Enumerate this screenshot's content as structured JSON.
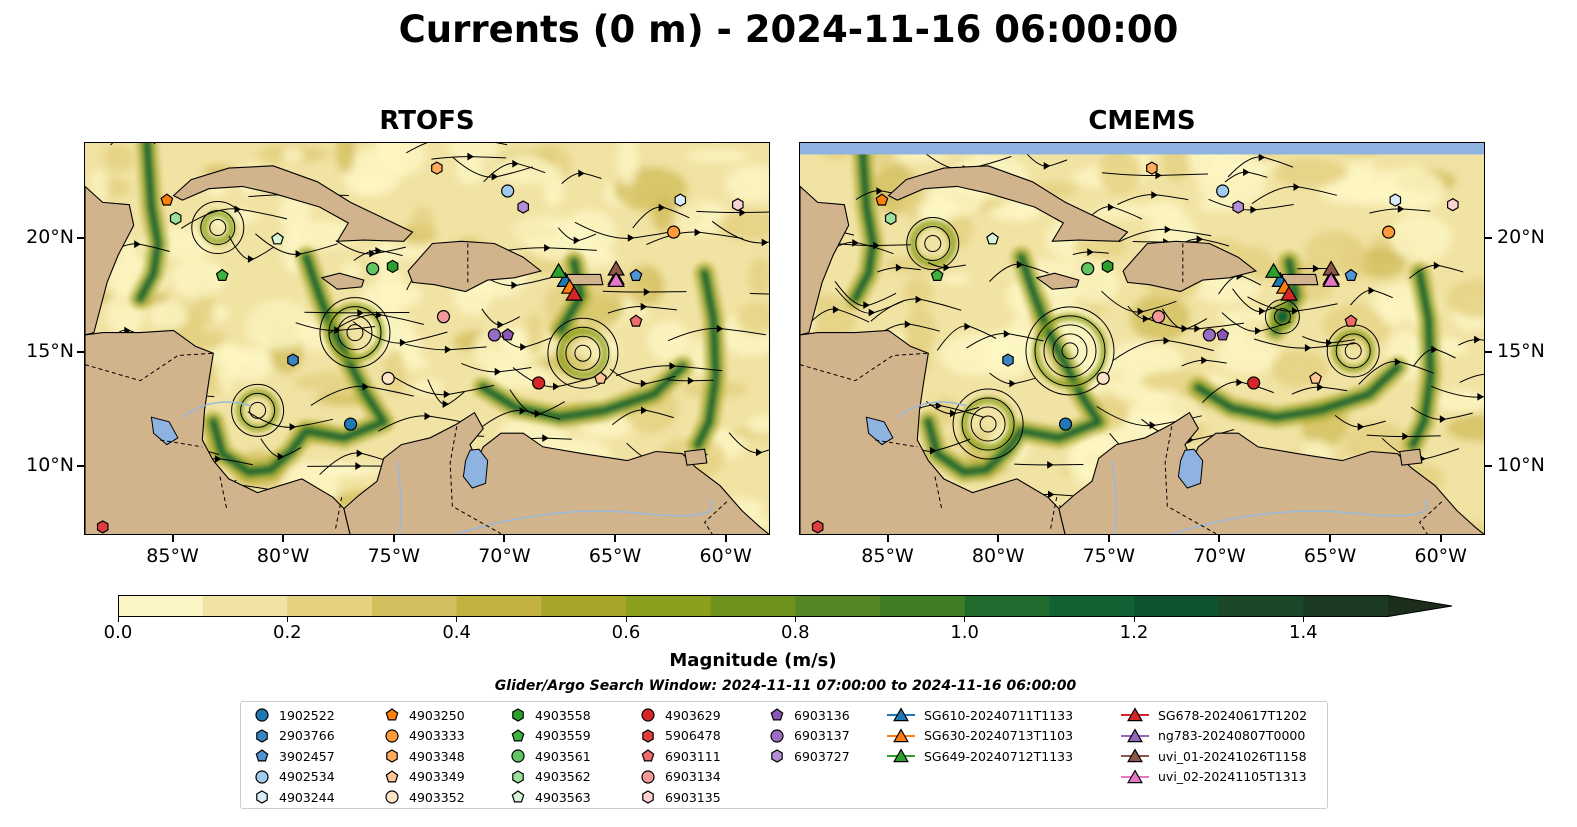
{
  "title": "Currents (0 m) - 2024-11-16 06:00:00",
  "panels": [
    {
      "name": "RTOFS"
    },
    {
      "name": "CMEMS"
    }
  ],
  "x_ticks": [
    "85°W",
    "80°W",
    "75°W",
    "70°W",
    "65°W",
    "60°W"
  ],
  "y_ticks": [
    "20°N",
    "15°N",
    "10°N"
  ],
  "colorbar": {
    "label": "Magnitude (m/s)",
    "ticks": [
      "0.0",
      "0.2",
      "0.4",
      "0.6",
      "0.8",
      "1.0",
      "1.2",
      "1.4"
    ],
    "range": [
      0,
      1.5
    ],
    "colors": [
      "#fcf6c4",
      "#f1e3a3",
      "#e4d07f",
      "#d2be5c",
      "#c1b240",
      "#a6a52a",
      "#899f1d",
      "#6e931c",
      "#558824",
      "#3f7c26",
      "#226b2e",
      "#116232",
      "#0f5230",
      "#1b4829",
      "#1c3a22",
      "#1a2e1a"
    ]
  },
  "search_window": "Glider/Argo Search Window: 2024-11-11 07:00:00 to 2024-11-16 06:00:00",
  "legend": {
    "columns": [
      [
        {
          "label": "1902522",
          "marker": "circle",
          "color": "#1f77b4"
        },
        {
          "label": "2903766",
          "marker": "hexagon",
          "color": "#3a84c0"
        },
        {
          "label": "3902457",
          "marker": "pentagon",
          "color": "#4f94d4"
        },
        {
          "label": "4902534",
          "marker": "circle",
          "color": "#9fcbee"
        },
        {
          "label": "4903244",
          "marker": "hexagon",
          "color": "#d9ecfa"
        }
      ],
      [
        {
          "label": "4903250",
          "marker": "pentagon",
          "color": "#ff7f0e"
        },
        {
          "label": "4903333",
          "marker": "circle",
          "color": "#ff9a3a"
        },
        {
          "label": "4903348",
          "marker": "hexagon",
          "color": "#ffad5c"
        },
        {
          "label": "4903349",
          "marker": "pentagon",
          "color": "#ffc593"
        },
        {
          "label": "4903352",
          "marker": "circle",
          "color": "#ffe3c7"
        }
      ],
      [
        {
          "label": "4903558",
          "marker": "hexagon",
          "color": "#2ca02c"
        },
        {
          "label": "4903559",
          "marker": "pentagon",
          "color": "#3fb13f"
        },
        {
          "label": "4903561",
          "marker": "circle",
          "color": "#62c462"
        },
        {
          "label": "4903562",
          "marker": "hexagon",
          "color": "#9ddf9d"
        },
        {
          "label": "4903563",
          "marker": "pentagon",
          "color": "#d6f5d6"
        }
      ],
      [
        {
          "label": "4903629",
          "marker": "circle",
          "color": "#d62728"
        },
        {
          "label": "5906478",
          "marker": "hexagon",
          "color": "#e03e3e"
        },
        {
          "label": "6903111",
          "marker": "pentagon",
          "color": "#ee6b6b"
        },
        {
          "label": "6903134",
          "marker": "circle",
          "color": "#f29999"
        },
        {
          "label": "6903135",
          "marker": "hexagon",
          "color": "#fcd3d3"
        }
      ],
      [
        {
          "label": "6903136",
          "marker": "pentagon",
          "color": "#8c56b6"
        },
        {
          "label": "6903137",
          "marker": "circle",
          "color": "#9b6cc3"
        },
        {
          "label": "6903727",
          "marker": "hexagon",
          "color": "#b38fd6"
        }
      ],
      [
        {
          "label": "SG610-20240711T1133",
          "marker": "triangle",
          "color": "#1f77b4"
        },
        {
          "label": "SG630-20240713T1103",
          "marker": "triangle",
          "color": "#ff7f0e"
        },
        {
          "label": "SG649-20240712T1133",
          "marker": "triangle",
          "color": "#2ca02c"
        }
      ],
      [
        {
          "label": "SG678-20240617T1202",
          "marker": "triangle",
          "color": "#d62728"
        },
        {
          "label": "ng783-20240807T0000",
          "marker": "triangle",
          "color": "#9467bd"
        },
        {
          "label": "uvi_01-20241026T1158",
          "marker": "triangle",
          "color": "#8c564b"
        },
        {
          "label": "uvi_02-20241105T1313",
          "marker": "triangle",
          "color": "#e377c2"
        }
      ]
    ]
  },
  "map_extent": {
    "lon": [
      -89,
      -58
    ],
    "lat": [
      7,
      24.2
    ]
  },
  "colors": {
    "land": "#d2b48c",
    "water_body": "#8fb3e0",
    "streamline": "#000000"
  },
  "observations": [
    {
      "id": "1902522",
      "lon": -77.0,
      "lat": 11.9,
      "marker": "circle",
      "color": "#1f77b4"
    },
    {
      "id": "2903766",
      "lon": -79.6,
      "lat": 14.7,
      "marker": "hexagon",
      "color": "#3a84c0"
    },
    {
      "id": "3902457",
      "lon": -64.1,
      "lat": 18.4,
      "marker": "pentagon",
      "color": "#4f94d4"
    },
    {
      "id": "4902534",
      "lon": -69.9,
      "lat": 22.1,
      "marker": "circle",
      "color": "#9fcbee"
    },
    {
      "id": "4903244",
      "lon": -62.1,
      "lat": 21.7,
      "marker": "hexagon",
      "color": "#d9ecfa"
    },
    {
      "id": "4903250",
      "lon": -85.3,
      "lat": 21.7,
      "marker": "pentagon",
      "color": "#ff7f0e"
    },
    {
      "id": "4903333",
      "lon": -62.4,
      "lat": 20.3,
      "marker": "circle",
      "color": "#ff9a3a"
    },
    {
      "id": "4903348",
      "lon": -73.1,
      "lat": 23.1,
      "marker": "hexagon",
      "color": "#ffad5c"
    },
    {
      "id": "4903349",
      "lon": -65.7,
      "lat": 13.9,
      "marker": "pentagon",
      "color": "#ffc593"
    },
    {
      "id": "4903352",
      "lon": -75.3,
      "lat": 13.9,
      "marker": "circle",
      "color": "#ffe3c7"
    },
    {
      "id": "4903558",
      "lon": -75.1,
      "lat": 18.8,
      "marker": "hexagon",
      "color": "#2ca02c"
    },
    {
      "id": "4903559",
      "lon": -82.8,
      "lat": 18.4,
      "marker": "pentagon",
      "color": "#3fb13f"
    },
    {
      "id": "4903561",
      "lon": -76.0,
      "lat": 18.7,
      "marker": "circle",
      "color": "#62c462"
    },
    {
      "id": "4903562",
      "lon": -84.9,
      "lat": 20.9,
      "marker": "hexagon",
      "color": "#9ddf9d"
    },
    {
      "id": "4903563",
      "lon": -80.3,
      "lat": 20.0,
      "marker": "pentagon",
      "color": "#d6f5d6"
    },
    {
      "id": "4903629",
      "lon": -68.5,
      "lat": 13.7,
      "marker": "circle",
      "color": "#d62728"
    },
    {
      "id": "5906478",
      "lon": -88.2,
      "lat": 7.4,
      "marker": "hexagon",
      "color": "#e03e3e"
    },
    {
      "id": "6903111",
      "lon": -64.1,
      "lat": 16.4,
      "marker": "pentagon",
      "color": "#ee6b6b"
    },
    {
      "id": "6903134",
      "lon": -72.8,
      "lat": 16.6,
      "marker": "circle",
      "color": "#f29999"
    },
    {
      "id": "6903135",
      "lon": -59.5,
      "lat": 21.5,
      "marker": "hexagon",
      "color": "#fcd3d3"
    },
    {
      "id": "6903136",
      "lon": -69.9,
      "lat": 15.8,
      "marker": "pentagon",
      "color": "#8c56b6"
    },
    {
      "id": "6903137",
      "lon": -70.5,
      "lat": 15.8,
      "marker": "circle",
      "color": "#9b6cc3"
    },
    {
      "id": "6903727",
      "lon": -69.2,
      "lat": 21.4,
      "marker": "hexagon",
      "color": "#b38fd6"
    },
    {
      "id": "SG610-20240711T1133",
      "lon": -67.3,
      "lat": 18.2,
      "marker": "triangle",
      "color": "#1f77b4"
    },
    {
      "id": "SG630-20240713T1103",
      "lon": -67.1,
      "lat": 17.9,
      "marker": "triangle",
      "color": "#ff7f0e"
    },
    {
      "id": "SG649-20240712T1133",
      "lon": -67.6,
      "lat": 18.6,
      "marker": "triangle",
      "color": "#2ca02c"
    },
    {
      "id": "SG678-20240617T1202",
      "lon": -66.9,
      "lat": 17.6,
      "marker": "triangle",
      "color": "#d62728"
    },
    {
      "id": "ng783-20240807T0000",
      "lon": -65.0,
      "lat": 18.3,
      "marker": "triangle",
      "color": "#9467bd"
    },
    {
      "id": "uvi_01-20241026T1158",
      "lon": -65.0,
      "lat": 18.7,
      "marker": "triangle",
      "color": "#8c564b"
    },
    {
      "id": "uvi_02-20241105T1313",
      "lon": -65.0,
      "lat": 18.2,
      "marker": "triangle",
      "color": "#e377c2"
    }
  ]
}
